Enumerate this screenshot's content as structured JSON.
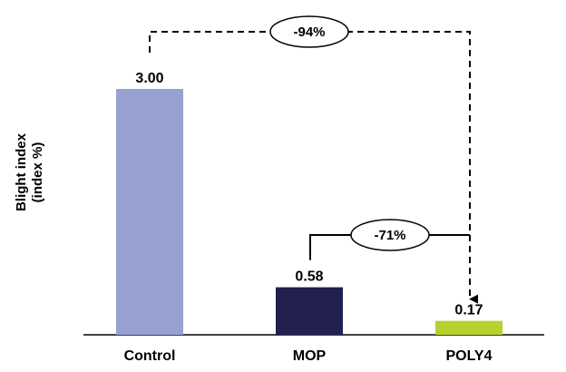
{
  "chart_data": {
    "type": "bar",
    "categories": [
      "Control",
      "MOP",
      "POLY4"
    ],
    "values": [
      3.0,
      0.58,
      0.17
    ],
    "value_labels": [
      "3.00",
      "0.58",
      "0.17"
    ],
    "bar_colors": [
      "#98a2d2",
      "#22204f",
      "#b6d12e"
    ],
    "ylabel": [
      "Blight index",
      "(index %)"
    ],
    "ylim": [
      0,
      3.0
    ],
    "grid": false,
    "annotations": [
      {
        "label": "-94%",
        "from": "Control",
        "to": "POLY4",
        "style": "dashed"
      },
      {
        "label": "-71%",
        "from": "MOP",
        "to": "POLY4",
        "style": "solid"
      }
    ]
  }
}
